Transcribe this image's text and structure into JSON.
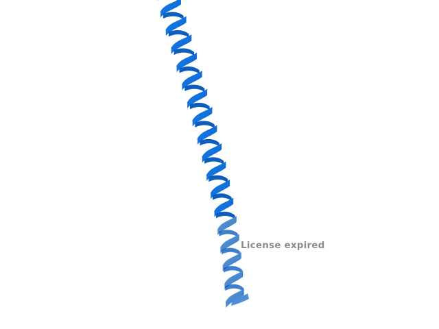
{
  "viewer": {
    "background_color": "#ffffff",
    "structure_icon": "alpha-helix-ribbon",
    "ribbon_color_dark": "#0055b8",
    "ribbon_color_mid": "#0a6fe0",
    "ribbon_color_light": "#4d8fd6",
    "watermark_text": "License expired",
    "watermark_color": "#8c8c8c"
  }
}
